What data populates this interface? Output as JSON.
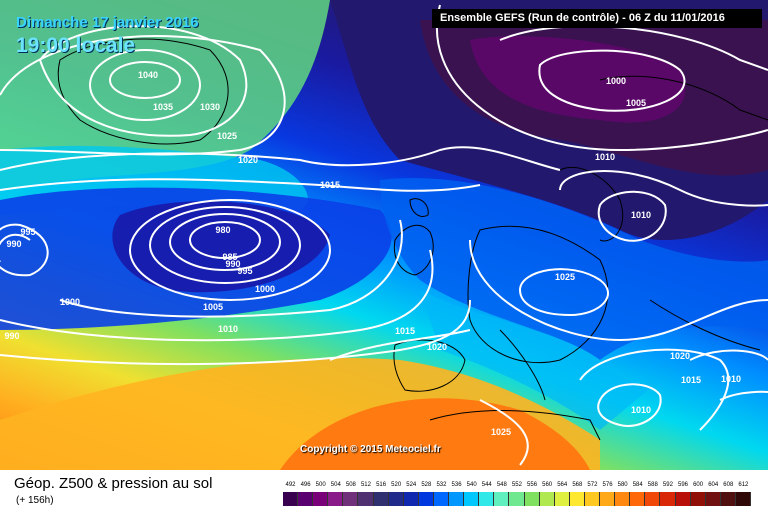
{
  "header": {
    "date": "Dimanche 17 janvier 2016",
    "time": "19:00 locale",
    "run": "Ensemble GEFS  (Run de contrôle)  -  06 Z du 11/01/2016"
  },
  "copyright": "Copyright © 2015 Meteociel.fr",
  "legend": {
    "title": "Géop. Z500 & pression au sol",
    "subtitle": "(+ 156h)",
    "ticks": [
      "492",
      "496",
      "500",
      "504",
      "508",
      "512",
      "516",
      "520",
      "524",
      "528",
      "532",
      "536",
      "540",
      "544",
      "548",
      "552",
      "556",
      "560",
      "564",
      "568",
      "572",
      "576",
      "580",
      "584",
      "588",
      "592",
      "596",
      "600",
      "604",
      "608",
      "612"
    ],
    "colors": [
      "#3a0050",
      "#5a0070",
      "#7a007a",
      "#8a1a8a",
      "#70307a",
      "#503070",
      "#303070",
      "#202a8a",
      "#1028b0",
      "#0038e0",
      "#0068ff",
      "#0098ff",
      "#00c8ff",
      "#30e8e8",
      "#60f0c0",
      "#70e890",
      "#80e060",
      "#b0e850",
      "#e0f040",
      "#ffe830",
      "#ffc820",
      "#ffa818",
      "#ff8810",
      "#ff6808",
      "#f04808",
      "#d82808",
      "#b81008",
      "#901008",
      "#701010",
      "#501010",
      "#300808"
    ]
  },
  "map": {
    "isobar_labels": [
      "1040",
      "1035",
      "1030",
      "1025",
      "1020",
      "1015",
      "1010",
      "1005",
      "1000",
      "995",
      "990",
      "985",
      "980",
      "1025",
      "1020",
      "1015",
      "1010",
      "1015",
      "1010",
      "1020",
      "1000",
      "1005",
      "1010",
      "1010",
      "995",
      "990",
      "990",
      "1000",
      "1010",
      "1025"
    ],
    "colors": {
      "deep_purple": "#3a1050",
      "navy": "#14107a",
      "blue": "#0838e0",
      "light_blue": "#0098ff",
      "cyan": "#00d8f0",
      "green": "#60e070",
      "yellow": "#f0e030",
      "orange": "#ff8a10",
      "isobar": "#ffffff"
    }
  }
}
